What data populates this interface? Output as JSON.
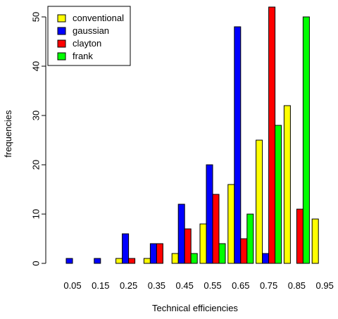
{
  "chart_data": {
    "type": "bar",
    "title": "",
    "xlabel": "Technical efficiencies",
    "ylabel": "frequencies",
    "categories": [
      "0.05",
      "0.15",
      "0.25",
      "0.35",
      "0.45",
      "0.55",
      "0.65",
      "0.75",
      "0.85",
      "0.95"
    ],
    "series": [
      {
        "name": "conventional",
        "color": "#ffff00",
        "values": [
          0,
          0,
          1,
          1,
          2,
          8,
          16,
          25,
          32,
          9
        ]
      },
      {
        "name": "gaussian",
        "color": "#0000ff",
        "values": [
          1,
          1,
          6,
          4,
          12,
          20,
          48,
          2,
          0,
          0
        ]
      },
      {
        "name": "clayton",
        "color": "#ff0000",
        "values": [
          0,
          0,
          1,
          4,
          7,
          14,
          5,
          52,
          11,
          0
        ]
      },
      {
        "name": "frank",
        "color": "#00ff00",
        "values": [
          0,
          0,
          0,
          0,
          2,
          4,
          10,
          28,
          50,
          0
        ]
      }
    ],
    "ylim": [
      0,
      52
    ],
    "yticks": [
      0,
      10,
      20,
      30,
      40,
      50
    ],
    "legend_position": "top-left",
    "grid": false
  }
}
